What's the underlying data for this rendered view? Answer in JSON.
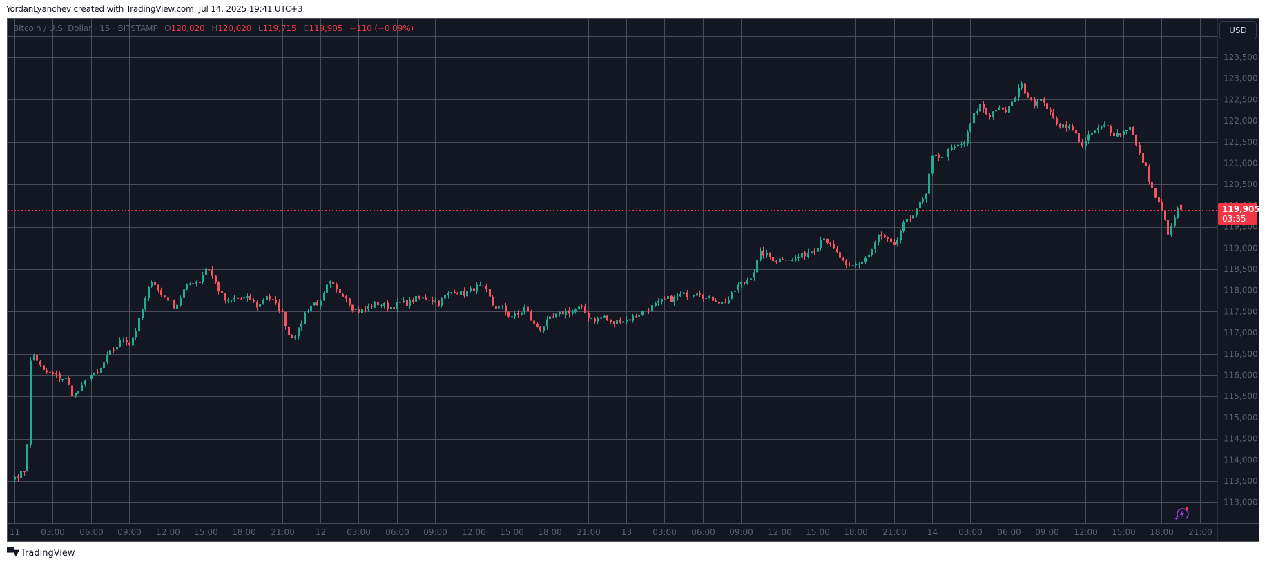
{
  "caption": "YordanLyanchev created with TradingView.com, Jul 14, 2025 19:41 UTC+3",
  "legend": {
    "symbol": "Bitcoin / U.S. Dollar · 15 · BITSTAMP",
    "open_label": "O",
    "open": "120,020",
    "high_label": "H",
    "high": "120,020",
    "low_label": "L",
    "low": "119,715",
    "close_label": "C",
    "close": "119,905",
    "change": "−110 (−0.09%)"
  },
  "currency_button": "USD",
  "last_price": {
    "value": "119,905",
    "countdown": "03:35"
  },
  "footer_brand": "TradingView",
  "colors": {
    "background": "#131722",
    "grid": "#4a4e5a",
    "up": "#22ab94",
    "down": "#f7525f",
    "axis_text": "#5d606b",
    "last_price": "#f23645"
  },
  "chart_data": {
    "type": "candlestick",
    "title": "Bitcoin / U.S. Dollar · 15 · BITSTAMP",
    "interval_minutes": 15,
    "xlabel": "",
    "ylabel": "USD",
    "ylim": [
      112600,
      124300
    ],
    "grid": true,
    "y_ticks": [
      113000,
      113500,
      114000,
      114500,
      115000,
      115500,
      116000,
      116500,
      117000,
      117500,
      118000,
      118500,
      119000,
      119500,
      120000,
      120500,
      121000,
      121500,
      122000,
      122500,
      123000,
      123500
    ],
    "x_ticks": [
      "11",
      "03:00",
      "06:00",
      "09:00",
      "12:00",
      "15:00",
      "18:00",
      "21:00",
      "12",
      "03:00",
      "06:00",
      "09:00",
      "12:00",
      "15:00",
      "18:00",
      "21:00",
      "13",
      "03:00",
      "06:00",
      "09:00",
      "12:00",
      "15:00",
      "18:00",
      "21:00",
      "14",
      "03:00",
      "06:00",
      "09:00",
      "12:00",
      "15:00",
      "18:00",
      "21:00"
    ],
    "last_price": 119905,
    "ohlc_last": {
      "open": 120020,
      "high": 120020,
      "low": 119715,
      "close": 119905,
      "change": -110,
      "change_pct": -0.09
    },
    "keypoints_note": "bar index (15-min bars since Jul 11 00:00) → approximate close",
    "keypoints": [
      [
        0,
        113600
      ],
      [
        2,
        113700
      ],
      [
        3,
        113800
      ],
      [
        4,
        116300
      ],
      [
        5,
        116500
      ],
      [
        7,
        116100
      ],
      [
        10,
        116000
      ],
      [
        13,
        115900
      ],
      [
        15,
        115500
      ],
      [
        17,
        115700
      ],
      [
        19,
        116000
      ],
      [
        21,
        116000
      ],
      [
        24,
        116500
      ],
      [
        26,
        116700
      ],
      [
        28,
        116900
      ],
      [
        29,
        116700
      ],
      [
        31,
        117100
      ],
      [
        33,
        117700
      ],
      [
        35,
        118300
      ],
      [
        37,
        117900
      ],
      [
        39,
        117800
      ],
      [
        41,
        117600
      ],
      [
        43,
        118000
      ],
      [
        45,
        118200
      ],
      [
        47,
        118200
      ],
      [
        49,
        118600
      ],
      [
        50,
        118400
      ],
      [
        52,
        118000
      ],
      [
        54,
        117700
      ],
      [
        56,
        117800
      ],
      [
        58,
        117800
      ],
      [
        60,
        117800
      ],
      [
        62,
        117600
      ],
      [
        64,
        117900
      ],
      [
        66,
        117700
      ],
      [
        68,
        117500
      ],
      [
        70,
        116900
      ],
      [
        72,
        117000
      ],
      [
        74,
        117500
      ],
      [
        76,
        117700
      ],
      [
        78,
        117700
      ],
      [
        80,
        118200
      ],
      [
        82,
        118000
      ],
      [
        84,
        117900
      ],
      [
        86,
        117600
      ],
      [
        88,
        117500
      ],
      [
        90,
        117600
      ],
      [
        92,
        117700
      ],
      [
        96,
        117600
      ],
      [
        98,
        117700
      ],
      [
        100,
        117700
      ],
      [
        102,
        117800
      ],
      [
        104,
        117800
      ],
      [
        106,
        117800
      ],
      [
        108,
        117700
      ],
      [
        110,
        117900
      ],
      [
        112,
        118000
      ],
      [
        114,
        117900
      ],
      [
        116,
        118000
      ],
      [
        118,
        118100
      ],
      [
        120,
        118000
      ],
      [
        122,
        117600
      ],
      [
        124,
        117600
      ],
      [
        126,
        117400
      ],
      [
        128,
        117400
      ],
      [
        130,
        117600
      ],
      [
        132,
        117200
      ],
      [
        134,
        117100
      ],
      [
        136,
        117300
      ],
      [
        138,
        117400
      ],
      [
        140,
        117500
      ],
      [
        142,
        117500
      ],
      [
        144,
        117600
      ],
      [
        146,
        117400
      ],
      [
        148,
        117300
      ],
      [
        150,
        117400
      ],
      [
        152,
        117200
      ],
      [
        154,
        117300
      ],
      [
        156,
        117300
      ],
      [
        158,
        117400
      ],
      [
        160,
        117500
      ],
      [
        162,
        117600
      ],
      [
        164,
        117700
      ],
      [
        166,
        117800
      ],
      [
        168,
        117800
      ],
      [
        170,
        117900
      ],
      [
        172,
        117900
      ],
      [
        174,
        118000
      ],
      [
        176,
        117800
      ],
      [
        178,
        117800
      ],
      [
        180,
        117700
      ],
      [
        182,
        117800
      ],
      [
        184,
        118100
      ],
      [
        186,
        118200
      ],
      [
        188,
        118400
      ],
      [
        190,
        118900
      ],
      [
        192,
        118800
      ],
      [
        194,
        118700
      ],
      [
        196,
        118800
      ],
      [
        198,
        118700
      ],
      [
        200,
        118800
      ],
      [
        202,
        118900
      ],
      [
        204,
        119000
      ],
      [
        206,
        119300
      ],
      [
        208,
        119000
      ],
      [
        210,
        118800
      ],
      [
        212,
        118500
      ],
      [
        214,
        118600
      ],
      [
        216,
        118700
      ],
      [
        218,
        118900
      ],
      [
        220,
        119300
      ],
      [
        222,
        119200
      ],
      [
        224,
        119000
      ],
      [
        226,
        119500
      ],
      [
        228,
        119700
      ],
      [
        230,
        120000
      ],
      [
        232,
        120200
      ],
      [
        234,
        121300
      ],
      [
        236,
        121100
      ],
      [
        238,
        121300
      ],
      [
        240,
        121400
      ],
      [
        242,
        121500
      ],
      [
        244,
        122100
      ],
      [
        246,
        122400
      ],
      [
        248,
        122100
      ],
      [
        250,
        122300
      ],
      [
        252,
        122200
      ],
      [
        254,
        122400
      ],
      [
        256,
        122900
      ],
      [
        258,
        122600
      ],
      [
        260,
        122400
      ],
      [
        262,
        122500
      ],
      [
        264,
        122100
      ],
      [
        266,
        121900
      ],
      [
        268,
        121900
      ],
      [
        270,
        121700
      ],
      [
        272,
        121400
      ],
      [
        274,
        121700
      ],
      [
        276,
        121800
      ],
      [
        278,
        121900
      ],
      [
        280,
        121700
      ],
      [
        282,
        121700
      ],
      [
        284,
        121900
      ],
      [
        286,
        121300
      ],
      [
        288,
        120900
      ],
      [
        290,
        120300
      ],
      [
        292,
        119900
      ],
      [
        294,
        119300
      ],
      [
        296,
        119900
      ],
      [
        297,
        119905
      ]
    ]
  }
}
